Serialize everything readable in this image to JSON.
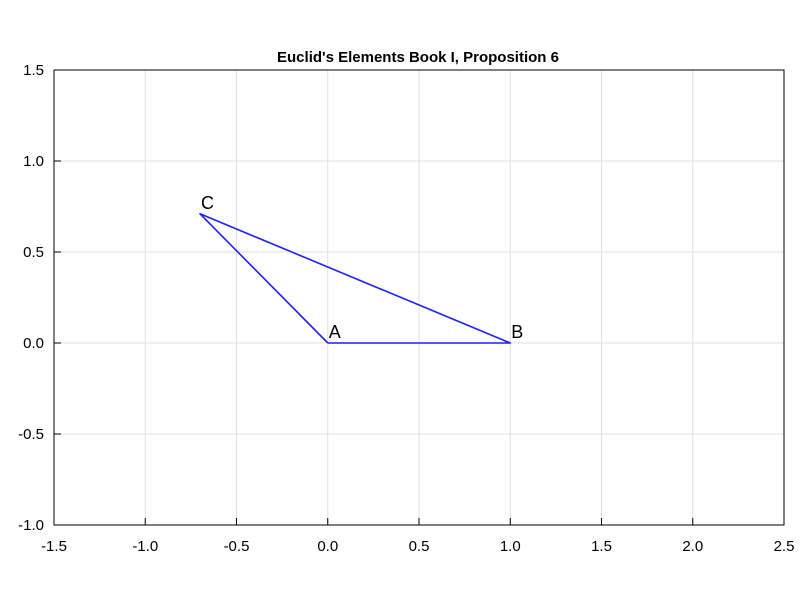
{
  "chart_data": {
    "type": "line",
    "title": "Euclid's Elements Book I, Proposition 6",
    "xlabel": "",
    "ylabel": "",
    "xlim": [
      -1.5,
      2.5
    ],
    "ylim": [
      -1.0,
      1.5
    ],
    "grid": true,
    "x_ticks": [
      -1.5,
      -1.0,
      -0.5,
      0.0,
      0.5,
      1.0,
      1.5,
      2.0,
      2.5
    ],
    "x_tick_labels": [
      "-1.5",
      "-1.0",
      "-0.5",
      "0.0",
      "0.5",
      "1.0",
      "1.5",
      "2.0",
      "2.5"
    ],
    "y_ticks": [
      -1.0,
      -0.5,
      0.0,
      0.5,
      1.0,
      1.5
    ],
    "y_tick_labels": [
      "-1.0",
      "-0.5",
      "0.0",
      "0.5",
      "1.0",
      "1.5"
    ],
    "series": [
      {
        "color": "#1f1fff",
        "x": [
          0.0,
          1.0,
          -0.7,
          0.0
        ],
        "y": [
          0.0,
          0.0,
          0.71,
          0.0
        ]
      }
    ],
    "points": [
      {
        "label": "A",
        "x": 0.0,
        "y": 0.0
      },
      {
        "label": "B",
        "x": 1.0,
        "y": 0.0
      },
      {
        "label": "C",
        "x": -0.7,
        "y": 0.71
      }
    ]
  }
}
